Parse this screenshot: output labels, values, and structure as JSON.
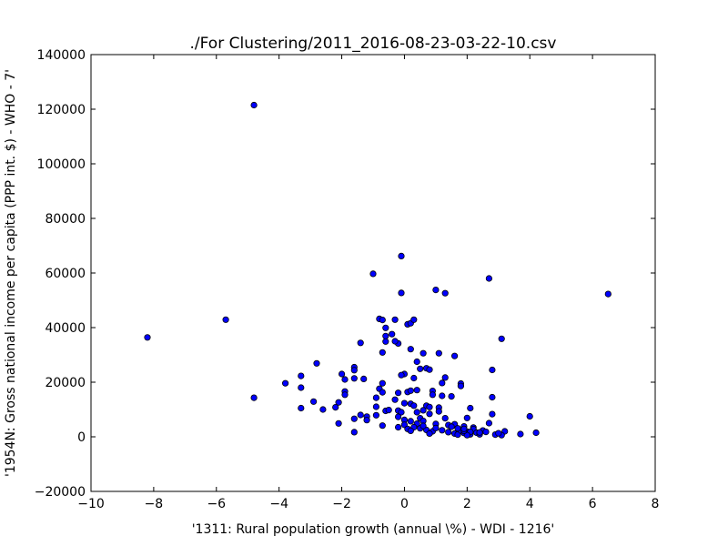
{
  "chart_data": {
    "type": "scatter",
    "title": "./For Clustering/2011_2016-08-23-03-22-10.csv",
    "xlabel": "'1311: Rural population growth  (annual \\%) - WDI - 1216'",
    "ylabel": "'1954N: Gross national income per capita (PPP int. $) - WHO - 7'",
    "xlim": [
      -10,
      8
    ],
    "ylim": [
      -20000,
      140000
    ],
    "xticks": [
      -10,
      -8,
      -6,
      -4,
      -2,
      0,
      2,
      4,
      6,
      8
    ],
    "yticks": [
      -20000,
      0,
      20000,
      40000,
      60000,
      80000,
      100000,
      120000,
      140000
    ],
    "xtick_labels": [
      "−10",
      "−8",
      "−6",
      "−4",
      "−2",
      "0",
      "2",
      "4",
      "6",
      "8"
    ],
    "ytick_labels": [
      "−20000",
      "0",
      "20000",
      "40000",
      "60000",
      "80000",
      "100000",
      "120000",
      "140000"
    ],
    "grid": false,
    "legend": "none",
    "marker_color": "#0000ff",
    "marker_edge": "#000000",
    "points": [
      [
        -4.8,
        121500
      ],
      [
        -8.2,
        36400
      ],
      [
        -5.7,
        42900
      ],
      [
        -4.8,
        14300
      ],
      [
        6.5,
        52300
      ],
      [
        3.1,
        35900
      ],
      [
        2.7,
        58000
      ],
      [
        2.8,
        24500
      ],
      [
        2.8,
        14500
      ],
      [
        2.8,
        8300
      ],
      [
        2.7,
        5000
      ],
      [
        4.0,
        7500
      ],
      [
        4.2,
        1500
      ],
      [
        3.7,
        1000
      ],
      [
        3.2,
        2000
      ],
      [
        3.1,
        600
      ],
      [
        2.9,
        800
      ],
      [
        3.0,
        1300
      ],
      [
        -0.1,
        66200
      ],
      [
        -1.0,
        59700
      ],
      [
        -0.1,
        52700
      ],
      [
        1.0,
        53800
      ],
      [
        1.3,
        52600
      ],
      [
        -0.8,
        43200
      ],
      [
        -0.7,
        42800
      ],
      [
        -0.3,
        42900
      ],
      [
        0.1,
        41200
      ],
      [
        0.2,
        41600
      ],
      [
        0.3,
        42900
      ],
      [
        -0.6,
        39900
      ],
      [
        -0.6,
        36900
      ],
      [
        -0.4,
        37600
      ],
      [
        -0.2,
        34200
      ],
      [
        -0.3,
        35000
      ],
      [
        -0.7,
        30900
      ],
      [
        -0.6,
        34900
      ],
      [
        0.2,
        32100
      ],
      [
        0.6,
        30600
      ],
      [
        1.1,
        30600
      ],
      [
        1.6,
        29600
      ],
      [
        -1.4,
        34400
      ],
      [
        -2.8,
        26900
      ],
      [
        0.4,
        27500
      ],
      [
        0.7,
        25100
      ],
      [
        0.8,
        24600
      ],
      [
        0.5,
        24900
      ],
      [
        -1.6,
        25500
      ],
      [
        -1.6,
        24400
      ],
      [
        0.0,
        23000
      ],
      [
        -0.1,
        22600
      ],
      [
        -2.0,
        23000
      ],
      [
        -3.3,
        22300
      ],
      [
        0.3,
        21500
      ],
      [
        1.3,
        21700
      ],
      [
        -1.9,
        21000
      ],
      [
        -1.6,
        21400
      ],
      [
        -1.3,
        21200
      ],
      [
        -3.8,
        19600
      ],
      [
        -0.7,
        19600
      ],
      [
        1.2,
        19700
      ],
      [
        1.8,
        19500
      ],
      [
        1.8,
        18600
      ],
      [
        -3.3,
        18000
      ],
      [
        -0.8,
        17600
      ],
      [
        0.4,
        17100
      ],
      [
        0.9,
        16800
      ],
      [
        0.1,
        16400
      ],
      [
        0.2,
        16900
      ],
      [
        -0.2,
        16100
      ],
      [
        -0.7,
        16300
      ],
      [
        -1.9,
        16600
      ],
      [
        -1.9,
        15400
      ],
      [
        -0.9,
        14300
      ],
      [
        0.9,
        15400
      ],
      [
        1.2,
        15000
      ],
      [
        1.5,
        14800
      ],
      [
        -2.9,
        12900
      ],
      [
        -2.1,
        12600
      ],
      [
        -3.3,
        10500
      ],
      [
        -0.3,
        13600
      ],
      [
        0.0,
        12300
      ],
      [
        0.2,
        12100
      ],
      [
        0.3,
        11400
      ],
      [
        0.7,
        11400
      ],
      [
        0.8,
        10900
      ],
      [
        1.1,
        10700
      ],
      [
        2.1,
        10500
      ],
      [
        -2.6,
        10000
      ],
      [
        -2.2,
        10800
      ],
      [
        -0.9,
        11000
      ],
      [
        -0.6,
        9500
      ],
      [
        -0.5,
        9800
      ],
      [
        -0.2,
        9600
      ],
      [
        -0.1,
        9000
      ],
      [
        0.4,
        9000
      ],
      [
        0.6,
        9700
      ],
      [
        0.8,
        8400
      ],
      [
        1.1,
        9300
      ],
      [
        -1.4,
        8000
      ],
      [
        -1.2,
        7400
      ],
      [
        -0.9,
        7900
      ],
      [
        -0.2,
        7300
      ],
      [
        0.0,
        6200
      ],
      [
        0.5,
        6800
      ],
      [
        1.3,
        6800
      ],
      [
        2.0,
        6900
      ],
      [
        -1.6,
        6600
      ],
      [
        -1.2,
        6100
      ],
      [
        -2.1,
        4900
      ],
      [
        -0.7,
        4100
      ],
      [
        -0.2,
        3500
      ],
      [
        0.0,
        4400
      ],
      [
        0.2,
        5700
      ],
      [
        0.4,
        4800
      ],
      [
        0.6,
        5800
      ],
      [
        1.0,
        4700
      ],
      [
        1.4,
        4300
      ],
      [
        1.6,
        4600
      ],
      [
        1.9,
        3800
      ],
      [
        2.2,
        3400
      ],
      [
        0.1,
        2900
      ],
      [
        0.3,
        3500
      ],
      [
        0.5,
        3100
      ],
      [
        0.7,
        2500
      ],
      [
        0.9,
        2000
      ],
      [
        1.0,
        3200
      ],
      [
        1.2,
        2400
      ],
      [
        1.4,
        1700
      ],
      [
        1.6,
        1200
      ],
      [
        1.7,
        800
      ],
      [
        1.8,
        2300
      ],
      [
        1.9,
        1400
      ],
      [
        2.0,
        1900
      ],
      [
        2.1,
        900
      ],
      [
        2.2,
        2800
      ],
      [
        2.3,
        1500
      ],
      [
        2.4,
        900
      ],
      [
        2.5,
        2300
      ],
      [
        2.6,
        1800
      ],
      [
        2.1,
        1800
      ],
      [
        2.0,
        600
      ],
      [
        1.5,
        3700
      ],
      [
        0.2,
        2200
      ],
      [
        0.6,
        4000
      ],
      [
        1.9,
        2200
      ],
      [
        -1.6,
        1700
      ],
      [
        0.8,
        1200
      ],
      [
        2.4,
        1600
      ],
      [
        1.7,
        3100
      ],
      [
        1.9,
        2900
      ]
    ]
  }
}
